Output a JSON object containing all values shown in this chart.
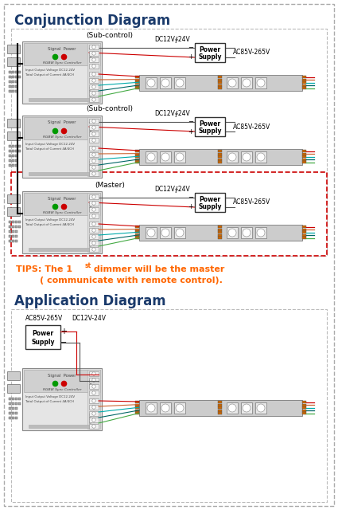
{
  "title_conjunction": "Conjunction Diagram",
  "title_application": "Application Diagram",
  "tips_color": "#FF6600",
  "title_color": "#1a3a6b",
  "bg": "#ffffff",
  "outer_dash_color": "#aaaaaa",
  "master_dash_color": "#cc0000",
  "conj_rows": [
    {
      "label": "(Sub‐control)",
      "is_master": false
    },
    {
      "label": "(Sub‐control)",
      "is_master": false
    },
    {
      "label": "(Master)",
      "is_master": true
    }
  ],
  "dc_text": "DC12V∲24V",
  "ac_text": "AC85V-265V",
  "ps_labels": [
    "Power",
    "Supply"
  ],
  "wire_colors": [
    "#cc0000",
    "#cc6633",
    "#00aaaa",
    "#00cccc",
    "#44aa44"
  ],
  "pin_color": "#cc6600",
  "ctrl_bg": "#e5e5e5",
  "ctrl_inner_bg": "#d0d0d0",
  "ctrl_text_color": "#444444",
  "green_dot": "#009900",
  "red_dot": "#cc0000",
  "strip_bg": "#cccccc",
  "led_bg": "#e8e8e8"
}
